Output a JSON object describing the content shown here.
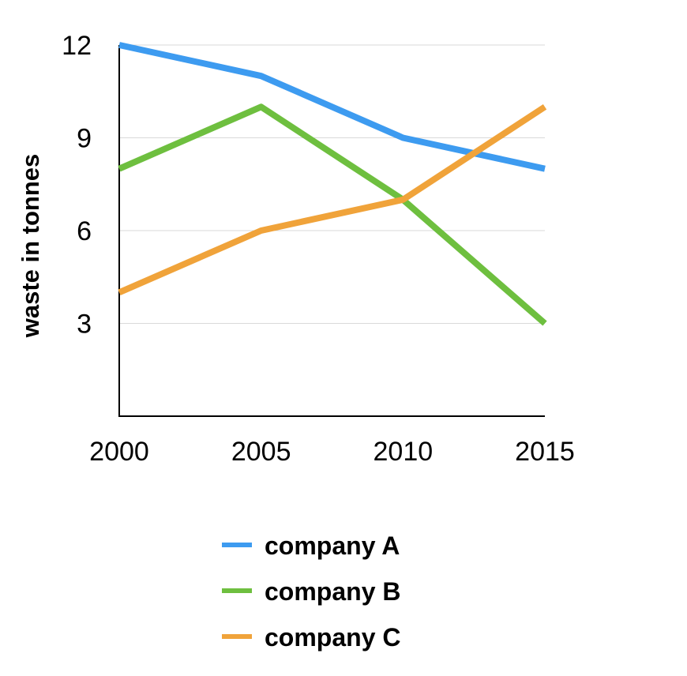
{
  "chart_data": {
    "type": "line",
    "title": "",
    "xlabel": "",
    "ylabel": "waste in tonnes",
    "categories": [
      "2000",
      "2005",
      "2010",
      "2015"
    ],
    "ylim": [
      0,
      12
    ],
    "yticks": [
      3,
      6,
      9,
      12
    ],
    "grid": true,
    "legend_position": "bottom",
    "series": [
      {
        "name": "company A",
        "color": "#3d9bf0",
        "values": [
          12,
          11,
          9,
          8
        ]
      },
      {
        "name": "company B",
        "color": "#6ebf3f",
        "values": [
          8,
          10,
          7,
          3
        ]
      },
      {
        "name": "company C",
        "color": "#f0a33a",
        "values": [
          4,
          6,
          7,
          10
        ]
      }
    ]
  }
}
